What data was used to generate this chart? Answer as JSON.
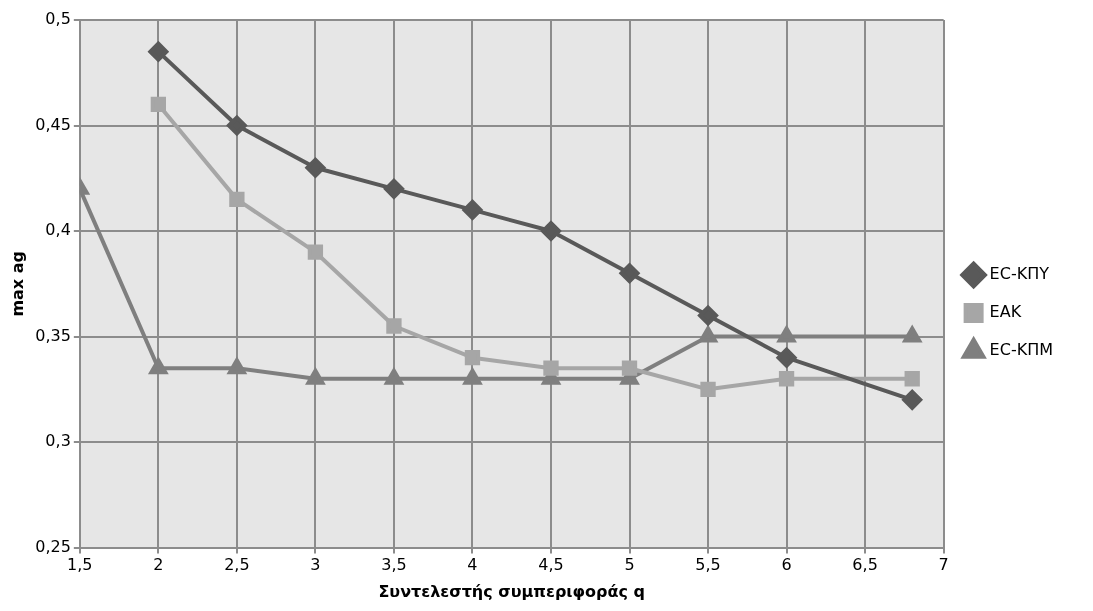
{
  "chart_data": {
    "type": "line",
    "xlabel": "Συντελεστής συμπεριφοράς q",
    "ylabel": "max ag",
    "xlim": [
      1.5,
      7
    ],
    "xticks": [
      {
        "value": 1.5,
        "label": "1,5"
      },
      2,
      {
        "value": 2.5,
        "label": "2,5"
      },
      3,
      {
        "value": 3.5,
        "label": "3,5"
      },
      4,
      {
        "value": 4.5,
        "label": "4,5"
      },
      5,
      {
        "value": 5.5,
        "label": "5,5"
      },
      6,
      {
        "value": 6.5,
        "label": "6,5"
      },
      7
    ],
    "ylim": [
      0.25,
      0.5
    ],
    "yticks": [
      {
        "value": 0.25,
        "label": "0,25"
      },
      {
        "value": 0.3,
        "label": "0,3"
      },
      {
        "value": 0.35,
        "label": "0,35"
      },
      {
        "value": 0.4,
        "label": "0,4"
      },
      {
        "value": 0.45,
        "label": "0,45"
      },
      {
        "value": 0.5,
        "label": "0,5"
      }
    ],
    "grid": true,
    "legend": "right",
    "line_style": "solid",
    "series": [
      {
        "name": "EC-ΚΠΥ",
        "color": "#595959",
        "marker": "diamond",
        "x": [
          2,
          2.5,
          3,
          3.5,
          4,
          4.5,
          5,
          5.5,
          6,
          6.8
        ],
        "values": [
          0.485,
          0.45,
          0.43,
          0.42,
          0.41,
          0.4,
          0.38,
          0.36,
          0.34,
          0.32
        ]
      },
      {
        "name": "ΕΑΚ",
        "color": "#a6a6a6",
        "marker": "square",
        "x": [
          2,
          2.5,
          3,
          3.5,
          4,
          4.5,
          5,
          5.5,
          6,
          6.8
        ],
        "values": [
          0.46,
          0.415,
          0.39,
          0.355,
          0.34,
          0.335,
          0.335,
          0.325,
          0.33,
          0.33
        ]
      },
      {
        "name": "EC-ΚΠΜ",
        "color": "#7f7f7f",
        "marker": "triangle",
        "x": [
          1.5,
          2,
          2.5,
          3,
          3.5,
          4,
          4.5,
          5,
          5.5,
          6,
          6.8
        ],
        "values": [
          0.42,
          0.335,
          0.335,
          0.33,
          0.33,
          0.33,
          0.33,
          0.33,
          0.35,
          0.35,
          0.35
        ]
      }
    ]
  }
}
